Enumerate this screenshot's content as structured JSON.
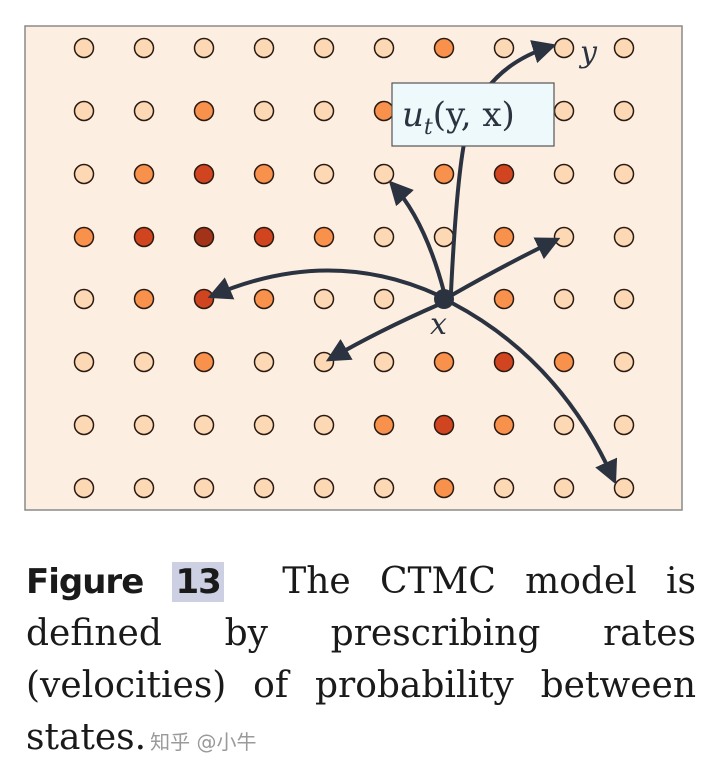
{
  "figure": {
    "background": "#fdeee2",
    "border_color": "#8a8a8a",
    "palette": {
      "L": "#fdd8b5",
      "O": "#f8914c",
      "R": "#d14420",
      "D": "#a33318"
    },
    "grid": {
      "cols": [
        84,
        144,
        204,
        264,
        324,
        384,
        444,
        504,
        564,
        624
      ],
      "rows": [
        48,
        111,
        174,
        237,
        299,
        362,
        425,
        488
      ],
      "values": [
        [
          "L",
          "L",
          "L",
          "L",
          "L",
          "L",
          "O",
          "L",
          "L",
          "L"
        ],
        [
          "L",
          "L",
          "O",
          "L",
          "L",
          "O",
          "L",
          "L",
          "L",
          "L"
        ],
        [
          "L",
          "O",
          "R",
          "O",
          "L",
          "L",
          "O",
          "R",
          "L",
          "L"
        ],
        [
          "O",
          "R",
          "D",
          "R",
          "O",
          "L",
          "L",
          "O",
          "L",
          "L"
        ],
        [
          "L",
          "O",
          "R",
          "O",
          "L",
          "L",
          "X",
          "O",
          "L",
          "L"
        ],
        [
          "L",
          "L",
          "O",
          "L",
          "L",
          "L",
          "O",
          "R",
          "O",
          "L"
        ],
        [
          "L",
          "L",
          "L",
          "L",
          "L",
          "O",
          "R",
          "O",
          "L",
          "L"
        ],
        [
          "L",
          "L",
          "L",
          "L",
          "L",
          "L",
          "O",
          "L",
          "L",
          "L"
        ]
      ]
    },
    "source_node": {
      "label": "x",
      "col": 6,
      "row": 4,
      "color": "#2b3340"
    },
    "target_label": "y",
    "rate_box": {
      "text": "u",
      "subscript": "t",
      "args": "(y, x)",
      "fill": "#eef9fc"
    },
    "arrow_color": "#2b3340"
  },
  "caption": {
    "label": "Figure",
    "number": "13",
    "text": "The CTMC model is defined by prescribing rates (velocities) of probability between states.",
    "watermark": "知乎 @小牛"
  }
}
